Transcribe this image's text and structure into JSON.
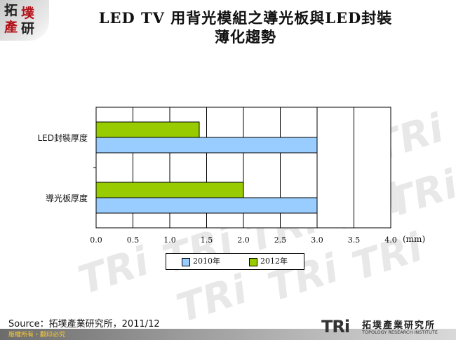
{
  "logo": {
    "chars": [
      "拓",
      "墣",
      "產",
      "研"
    ]
  },
  "title": {
    "line1": "LED TV 用背光模組之導光板與LED封裝",
    "line2": "薄化趨勢"
  },
  "chart_data": {
    "type": "bar",
    "orientation": "horizontal",
    "categories": [
      "LED封裝厚度",
      "導光板厚度"
    ],
    "series": [
      {
        "name": "2010年",
        "color": "#99ccff",
        "values": [
          3.0,
          3.0
        ]
      },
      {
        "name": "2012年",
        "color": "#99cc00",
        "values": [
          1.4,
          2.0
        ]
      }
    ],
    "xlim": [
      0,
      4.0
    ],
    "xticks": [
      "0.0",
      "0.5",
      "1.0",
      "1.5",
      "2.0",
      "2.5",
      "3.0",
      "3.5",
      "4.0"
    ],
    "xlabel": "(mm)",
    "grid": true,
    "legend_position": "bottom"
  },
  "source": "Source：拓墣產業研究所，2011/12",
  "footer": {
    "copyright": "版權所有・翻印必究",
    "brand_mark": "TRi",
    "brand_cn": "拓墣產業研究所",
    "brand_en": "TOPOLOGY RESEARCH INSTITUTE"
  }
}
